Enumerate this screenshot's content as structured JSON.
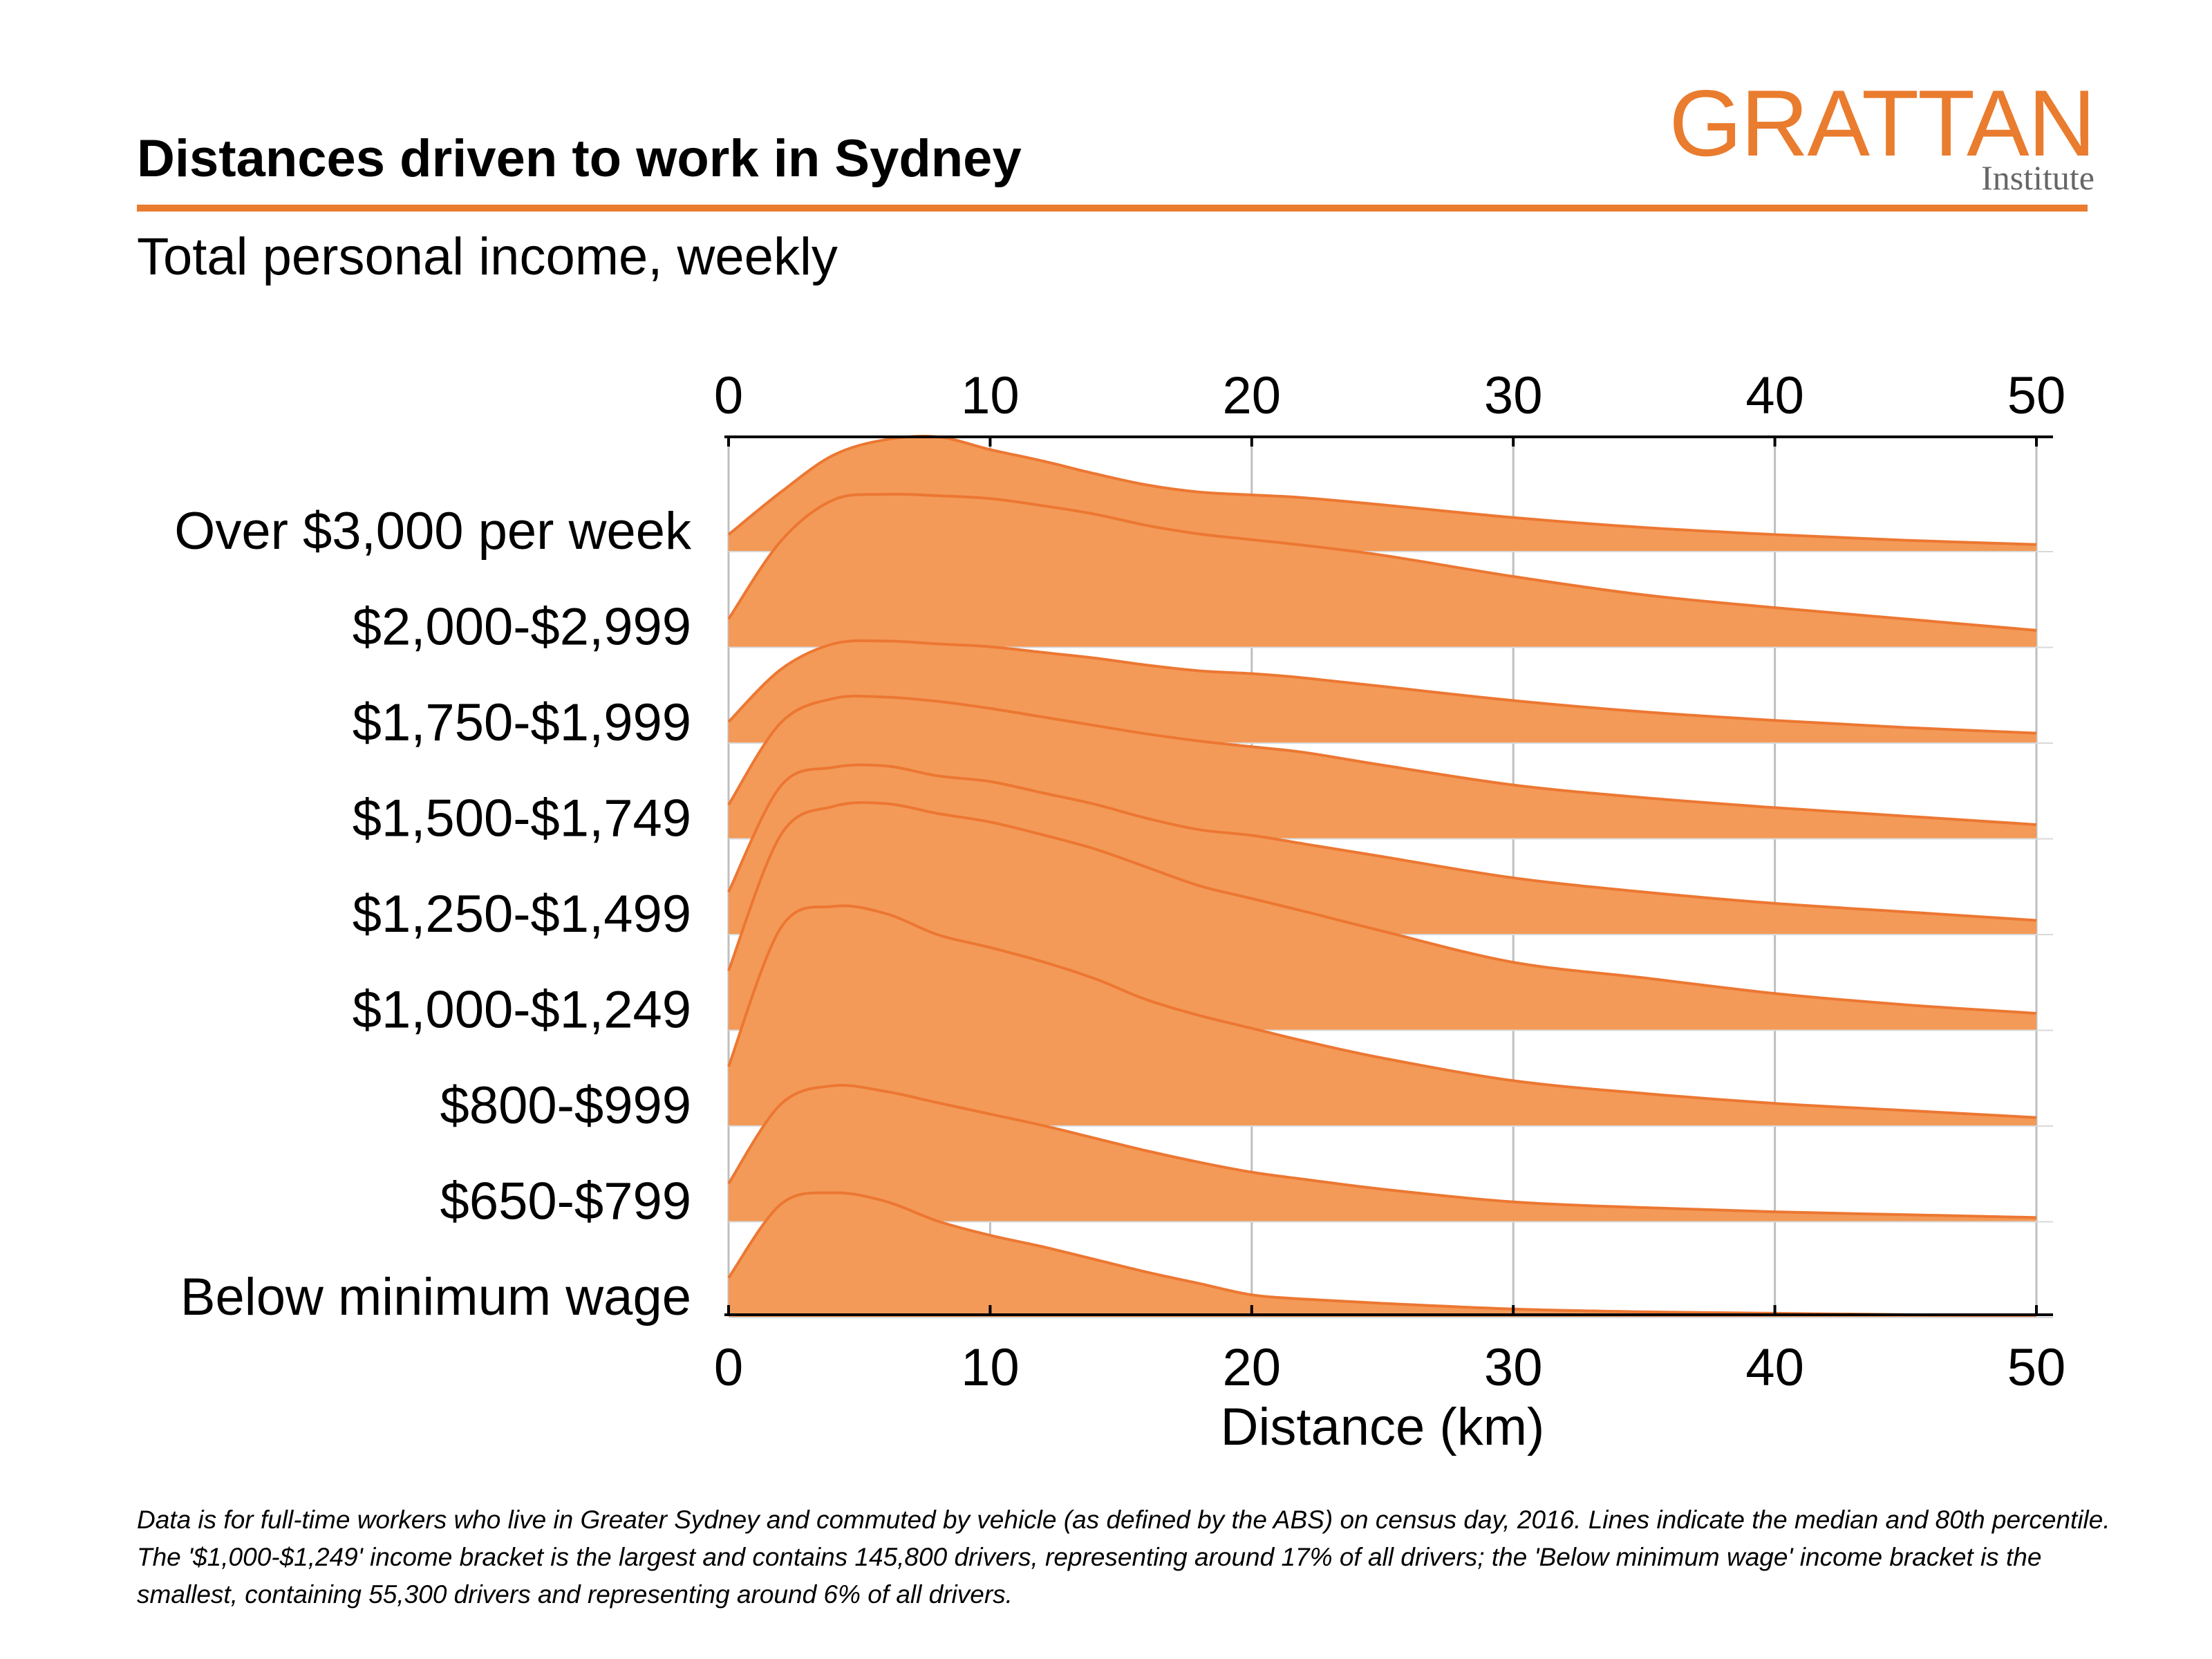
{
  "header": {
    "title": "Distances driven to work in Sydney",
    "subtitle": "Total personal income, weekly"
  },
  "logo": {
    "name": "GRATTAN",
    "sub": "Institute"
  },
  "colors": {
    "accent": "#E97C2E",
    "fill": "#F39A58",
    "line": "#EC7732",
    "grid": "#BFBFBF"
  },
  "chart_data": {
    "type": "ridgeline",
    "title": "Distances driven to work in Sydney",
    "subtitle": "Total personal income, weekly",
    "xlabel": "Distance (km)",
    "xlim": [
      0,
      50
    ],
    "xticks": [
      0,
      10,
      20,
      30,
      40,
      50
    ],
    "grid": true,
    "x": [
      0,
      2,
      4,
      6,
      8,
      10,
      12,
      14,
      16,
      18,
      20,
      22,
      25,
      30,
      35,
      40,
      45,
      50
    ],
    "series": [
      {
        "name": "Over $3,000 per week",
        "values": [
          0.12,
          0.42,
          0.68,
          0.79,
          0.81,
          0.72,
          0.64,
          0.55,
          0.47,
          0.42,
          0.4,
          0.38,
          0.33,
          0.24,
          0.17,
          0.12,
          0.08,
          0.05
        ]
      },
      {
        "name": "$2,000-$2,999",
        "values": [
          0.2,
          0.75,
          1.04,
          1.08,
          1.07,
          1.05,
          1.0,
          0.94,
          0.86,
          0.8,
          0.76,
          0.72,
          0.65,
          0.5,
          0.37,
          0.28,
          0.2,
          0.12
        ]
      },
      {
        "name": "$1,750-$1,999",
        "values": [
          0.15,
          0.52,
          0.7,
          0.72,
          0.7,
          0.68,
          0.64,
          0.6,
          0.55,
          0.51,
          0.49,
          0.46,
          0.4,
          0.3,
          0.22,
          0.16,
          0.11,
          0.07
        ]
      },
      {
        "name": "$1,500-$1,749",
        "values": [
          0.24,
          0.82,
          0.99,
          1.0,
          0.97,
          0.92,
          0.86,
          0.8,
          0.74,
          0.69,
          0.65,
          0.61,
          0.52,
          0.38,
          0.29,
          0.22,
          0.16,
          0.1
        ]
      },
      {
        "name": "$1,250-$1,499",
        "values": [
          0.3,
          1.05,
          1.18,
          1.19,
          1.12,
          1.08,
          1.0,
          0.92,
          0.82,
          0.74,
          0.7,
          0.64,
          0.55,
          0.4,
          0.3,
          0.22,
          0.16,
          0.1
        ]
      },
      {
        "name": "$1,000-$1,249",
        "values": [
          0.42,
          1.38,
          1.58,
          1.6,
          1.53,
          1.47,
          1.38,
          1.28,
          1.15,
          1.02,
          0.93,
          0.84,
          0.7,
          0.48,
          0.37,
          0.26,
          0.18,
          0.12
        ]
      },
      {
        "name": "$800-$999",
        "values": [
          0.42,
          1.4,
          1.55,
          1.5,
          1.35,
          1.26,
          1.16,
          1.04,
          0.89,
          0.78,
          0.69,
          0.6,
          0.48,
          0.32,
          0.23,
          0.16,
          0.11,
          0.06
        ]
      },
      {
        "name": "$650-$799",
        "values": [
          0.27,
          0.83,
          0.96,
          0.92,
          0.84,
          0.76,
          0.68,
          0.59,
          0.5,
          0.42,
          0.35,
          0.3,
          0.23,
          0.14,
          0.1,
          0.07,
          0.05,
          0.03
        ]
      },
      {
        "name": "Below minimum wage",
        "values": [
          0.28,
          0.8,
          0.88,
          0.82,
          0.68,
          0.58,
          0.5,
          0.41,
          0.32,
          0.24,
          0.16,
          0.13,
          0.1,
          0.06,
          0.04,
          0.03,
          0.02,
          0.01
        ]
      }
    ]
  },
  "footnote": "Data is for full-time workers who live in Greater Sydney and commuted by vehicle (as defined by the ABS) on census day, 2016. Lines indicate the median and 80th percentile. The '$1,000-$1,249' income bracket is the largest and contains 145,800 drivers, representing around 17% of all drivers; the 'Below minimum wage' income bracket is the smallest, containing 55,300 drivers and representing around 6% of all drivers."
}
